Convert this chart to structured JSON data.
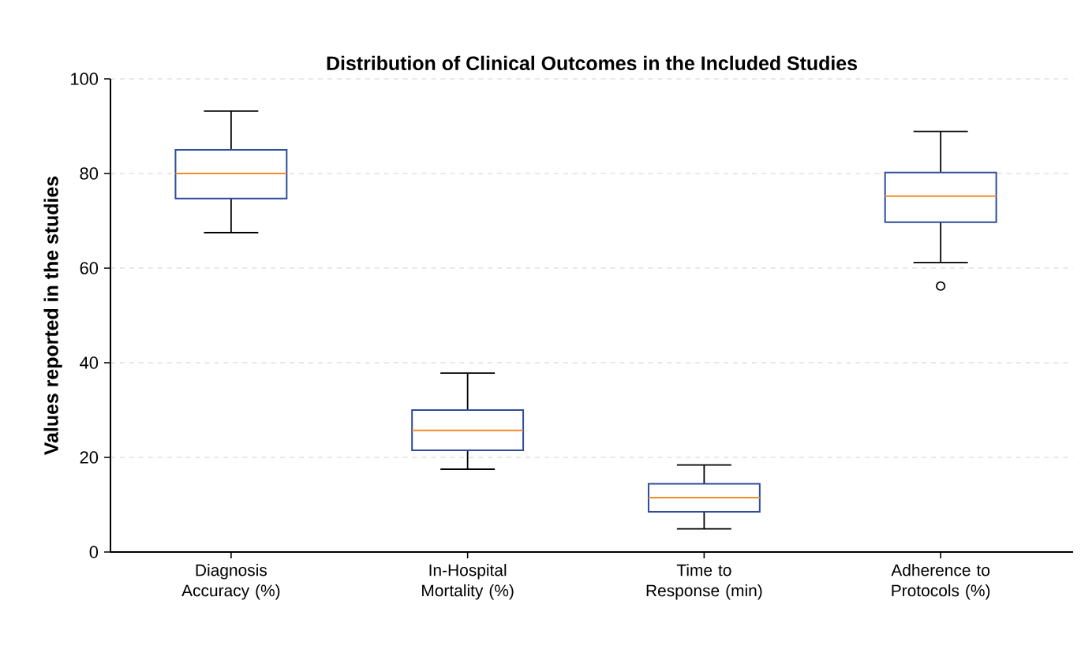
{
  "chart_data": {
    "type": "box",
    "title": "Distribution of Clinical Outcomes in the Included Studies",
    "ylabel": "Values reported in the studies",
    "categories": [
      "Diagnosis Accuracy (%)",
      "In-Hospital Mortality (%)",
      "Time to Response (min)",
      "Adherence to Protocols (%)"
    ],
    "series": [
      {
        "color": "#2e4c9c",
        "boxes": [
          {
            "low": 67.5,
            "q1": 74.7,
            "median": 80,
            "q3": 85,
            "high": 93.2
          },
          {
            "low": 17.5,
            "q1": 21.5,
            "median": 25.7,
            "q3": 30,
            "high": 37.8
          },
          {
            "low": 4.9,
            "q1": 8.5,
            "median": 11.5,
            "q3": 14.4,
            "high": 18.4
          },
          {
            "low": 61.2,
            "q1": 69.7,
            "median": 75.2,
            "q3": 80.2,
            "high": 88.9,
            "outliers": [
              56.2
            ]
          }
        ]
      }
    ],
    "ylim": [
      0,
      100
    ],
    "yticks": [
      0,
      20,
      40,
      60,
      80,
      100
    ],
    "grid": "y"
  }
}
